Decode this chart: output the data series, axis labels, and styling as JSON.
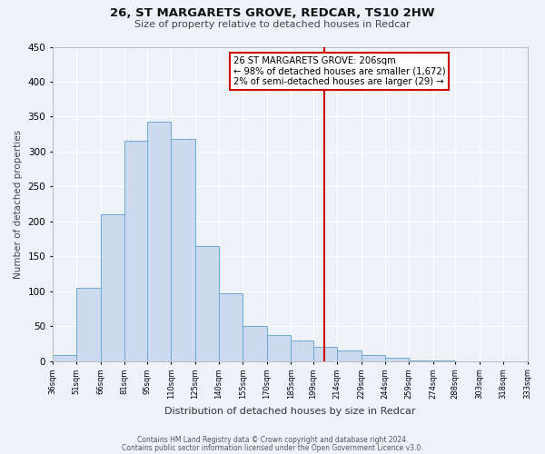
{
  "title_line1": "26, ST MARGARETS GROVE, REDCAR, TS10 2HW",
  "subtitle": "Size of property relative to detached houses in Redcar",
  "xlabel": "Distribution of detached houses by size in Redcar",
  "ylabel": "Number of detached properties",
  "bin_labels": [
    "36sqm",
    "51sqm",
    "66sqm",
    "81sqm",
    "95sqm",
    "110sqm",
    "125sqm",
    "140sqm",
    "155sqm",
    "170sqm",
    "185sqm",
    "199sqm",
    "214sqm",
    "229sqm",
    "244sqm",
    "259sqm",
    "274sqm",
    "288sqm",
    "303sqm",
    "318sqm",
    "333sqm"
  ],
  "bin_edges": [
    36,
    51,
    66,
    81,
    95,
    110,
    125,
    140,
    155,
    170,
    185,
    199,
    214,
    229,
    244,
    259,
    274,
    288,
    303,
    318,
    333
  ],
  "bar_heights": [
    8,
    105,
    210,
    315,
    343,
    318,
    165,
    97,
    50,
    37,
    29,
    20,
    15,
    8,
    5,
    1,
    1,
    0,
    0,
    0
  ],
  "bar_color": "#cdd9ee",
  "bar_edge_color": "#6aaad4",
  "property_size": 206,
  "vline_color": "#cc0000",
  "annotation_text_line1": "26 ST MARGARETS GROVE: 206sqm",
  "annotation_text_line2": "← 98% of detached houses are smaller (1,672)",
  "annotation_text_line3": "2% of semi-detached houses are larger (29) →",
  "annotation_box_edge": "#cc0000",
  "ylim": [
    0,
    450
  ],
  "yticks": [
    0,
    50,
    100,
    150,
    200,
    250,
    300,
    350,
    400,
    450
  ],
  "footer_line1": "Contains HM Land Registry data © Crown copyright and database right 2024.",
  "footer_line2": "Contains public sector information licensed under the Open Government Licence v3.0.",
  "background_color": "#eef2f8"
}
